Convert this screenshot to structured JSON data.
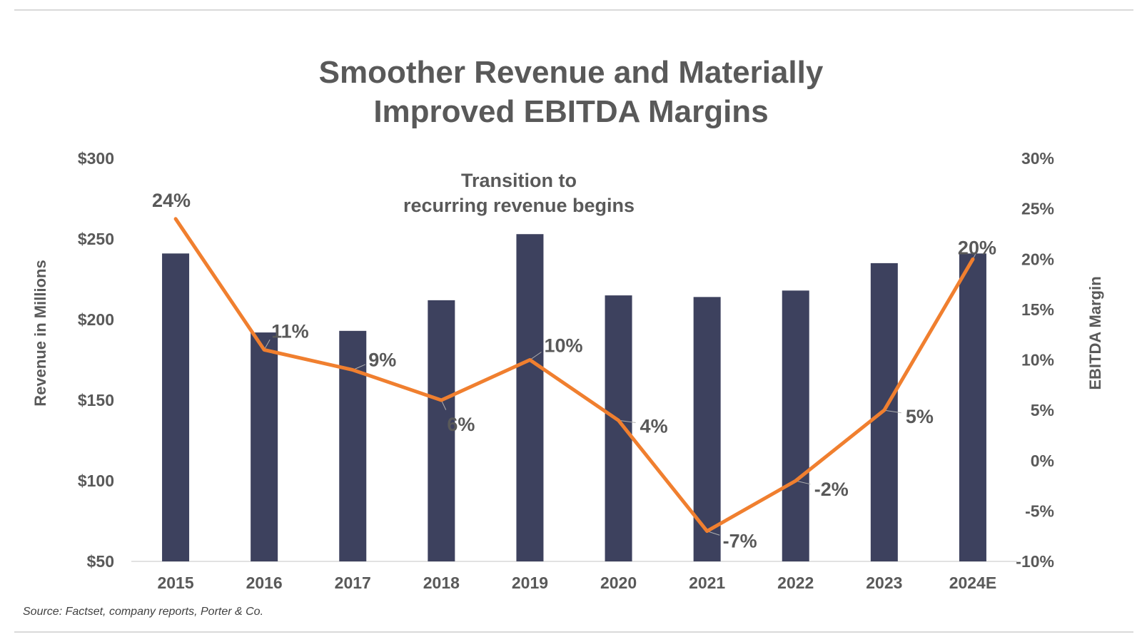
{
  "chart_data": {
    "type": "bar",
    "title_lines": [
      "Smoother Revenue and Materially",
      "Improved EBITDA Margins"
    ],
    "categories": [
      "2015",
      "2016",
      "2017",
      "2018",
      "2019",
      "2020",
      "2021",
      "2022",
      "2023",
      "2024E"
    ],
    "series": [
      {
        "type": "bar",
        "axis": "left",
        "color": "#3d415e",
        "values": [
          241,
          192,
          193,
          212,
          253,
          215,
          214,
          218,
          235,
          241
        ]
      },
      {
        "type": "line",
        "axis": "right",
        "color": "#f07f2f",
        "values": [
          24,
          11,
          9,
          6,
          10,
          4,
          -7,
          -2,
          5,
          20
        ],
        "labels": [
          "24%",
          "11%",
          "9%",
          "6%",
          "10%",
          "4%",
          "-7%",
          "-2%",
          "5%",
          "20%"
        ]
      }
    ],
    "ylabel": "Revenue in Millions",
    "ylim": [
      50,
      300
    ],
    "yticks": [
      "$50",
      "$100",
      "$150",
      "$200",
      "$250",
      "$300"
    ],
    "y2label": "EBITDA Margin",
    "y2lim": [
      -10,
      30
    ],
    "y2ticks": [
      "-10%",
      "-5%",
      "0%",
      "5%",
      "10%",
      "15%",
      "20%",
      "25%",
      "30%"
    ],
    "annotation_lines": [
      "Transition to",
      "recurring revenue begins"
    ],
    "grid": false,
    "legend": "none"
  },
  "source": "Source: Factset, company reports, Porter & Co."
}
